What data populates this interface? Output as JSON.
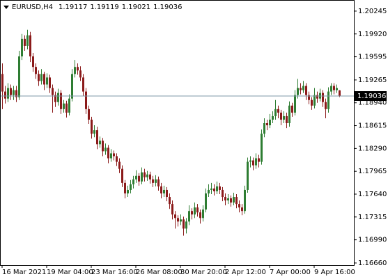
{
  "chart_data": {
    "type": "candlestick",
    "categories": [
      "16 Mar 2021",
      null,
      null,
      null,
      null,
      null,
      null,
      null,
      null,
      null,
      null,
      null,
      null,
      null,
      null,
      null,
      "19 Mar 04:00",
      null,
      null,
      null,
      null,
      null,
      null,
      null,
      null,
      null,
      null,
      null,
      null,
      null,
      null,
      null,
      "23 Mar 16:00",
      null,
      null,
      null,
      null,
      null,
      null,
      null,
      null,
      null,
      null,
      null,
      null,
      null,
      null,
      null,
      "26 Mar 08:00",
      null,
      null,
      null,
      null,
      null,
      null,
      null,
      null,
      null,
      null,
      null,
      null,
      null,
      null,
      null,
      "30 Mar 20:00",
      null,
      null,
      null,
      null,
      null,
      null,
      null,
      null,
      null,
      null,
      null,
      null,
      null,
      null,
      null,
      "2 Apr 12:00",
      null,
      null,
      null,
      null,
      null,
      null,
      null,
      null,
      null,
      null,
      null,
      null,
      null,
      null,
      null,
      "7 Apr 00:00",
      null,
      null,
      null,
      null,
      null,
      null,
      null,
      null,
      null,
      null,
      null,
      null,
      null,
      null,
      null,
      "9 Apr 16:00",
      null,
      null,
      null,
      null,
      null,
      null,
      null,
      null,
      null
    ],
    "series": [
      {
        "name": "EURUSD,H4",
        "up_color": "#2e7d32",
        "down_color": "#8b1a1a",
        "values": [
          [
            1.1935,
            1.195,
            1.1885,
            1.191
          ],
          [
            1.191,
            1.1918,
            1.1893,
            1.19
          ],
          [
            1.19,
            1.1922,
            1.1895,
            1.1915
          ],
          [
            1.1915,
            1.192,
            1.1898,
            1.1905
          ],
          [
            1.1905,
            1.1918,
            1.1898,
            1.1912
          ],
          [
            1.1912,
            1.1918,
            1.1895,
            1.1902
          ],
          [
            1.1902,
            1.1968,
            1.1898,
            1.196
          ],
          [
            1.196,
            1.1992,
            1.1955,
            1.1985
          ],
          [
            1.1985,
            1.199,
            1.1968,
            1.1975
          ],
          [
            1.1975,
            1.1998,
            1.197,
            1.199
          ],
          [
            1.199,
            1.1995,
            1.1952,
            1.196
          ],
          [
            1.196,
            1.1965,
            1.1938,
            1.1945
          ],
          [
            1.1945,
            1.195,
            1.1928,
            1.1935
          ],
          [
            1.1935,
            1.194,
            1.1918,
            1.1925
          ],
          [
            1.1925,
            1.1942,
            1.192,
            1.1935
          ],
          [
            1.1935,
            1.1938,
            1.1912,
            1.192
          ],
          [
            1.192,
            1.1936,
            1.1915,
            1.193
          ],
          [
            1.193,
            1.1934,
            1.1908,
            1.1915
          ],
          [
            1.1915,
            1.192,
            1.188,
            1.1905
          ],
          [
            1.1905,
            1.191,
            1.1888,
            1.1895
          ],
          [
            1.1895,
            1.1914,
            1.189,
            1.1908
          ],
          [
            1.1908,
            1.1912,
            1.1878,
            1.1885
          ],
          [
            1.1885,
            1.1898,
            1.188,
            1.1893
          ],
          [
            1.1893,
            1.1897,
            1.1873,
            1.188
          ],
          [
            1.188,
            1.1906,
            1.1876,
            1.19
          ],
          [
            1.19,
            1.1942,
            1.1896,
            1.1935
          ],
          [
            1.1935,
            1.1955,
            1.193,
            1.1945
          ],
          [
            1.1945,
            1.195,
            1.1934,
            1.194
          ],
          [
            1.194,
            1.1946,
            1.1925,
            1.193
          ],
          [
            1.193,
            1.1935,
            1.1904,
            1.191
          ],
          [
            1.191,
            1.1915,
            1.1878,
            1.1885
          ],
          [
            1.1885,
            1.189,
            1.1864,
            1.187
          ],
          [
            1.187,
            1.1874,
            1.1843,
            1.185
          ],
          [
            1.185,
            1.1862,
            1.1845,
            1.1855
          ],
          [
            1.1855,
            1.186,
            1.1828,
            1.1835
          ],
          [
            1.1835,
            1.1846,
            1.183,
            1.184
          ],
          [
            1.184,
            1.1844,
            1.1818,
            1.1825
          ],
          [
            1.1825,
            1.1836,
            1.182,
            1.183
          ],
          [
            1.183,
            1.1834,
            1.1808,
            1.1815
          ],
          [
            1.1815,
            1.1828,
            1.181,
            1.1822
          ],
          [
            1.1822,
            1.1826,
            1.1812,
            1.1818
          ],
          [
            1.1818,
            1.1822,
            1.1804,
            1.181
          ],
          [
            1.181,
            1.1815,
            1.1794,
            1.18
          ],
          [
            1.18,
            1.1805,
            1.1774,
            1.178
          ],
          [
            1.178,
            1.1784,
            1.1758,
            1.1765
          ],
          [
            1.1765,
            1.1776,
            1.176,
            1.177
          ],
          [
            1.177,
            1.1784,
            1.1765,
            1.1778
          ],
          [
            1.1778,
            1.179,
            1.1772,
            1.1785
          ],
          [
            1.1785,
            1.1798,
            1.178,
            1.179
          ],
          [
            1.179,
            1.1794,
            1.1776,
            1.1782
          ],
          [
            1.1782,
            1.1802,
            1.1778,
            1.1795
          ],
          [
            1.1795,
            1.18,
            1.1782,
            1.1788
          ],
          [
            1.1788,
            1.1797,
            1.1783,
            1.1792
          ],
          [
            1.1792,
            1.1796,
            1.1779,
            1.1785
          ],
          [
            1.1785,
            1.179,
            1.1774,
            1.178
          ],
          [
            1.178,
            1.1791,
            1.1775,
            1.1785
          ],
          [
            1.1785,
            1.1789,
            1.1769,
            1.1775
          ],
          [
            1.1775,
            1.178,
            1.1758,
            1.1765
          ],
          [
            1.1765,
            1.1776,
            1.176,
            1.177
          ],
          [
            1.177,
            1.1774,
            1.1754,
            1.176
          ],
          [
            1.176,
            1.1765,
            1.1743,
            1.175
          ],
          [
            1.175,
            1.1755,
            1.1728,
            1.1735
          ],
          [
            1.1735,
            1.174,
            1.1715,
            1.173
          ],
          [
            1.173,
            1.1734,
            1.1718,
            1.1725
          ],
          [
            1.1725,
            1.1735,
            1.172,
            1.1728
          ],
          [
            1.1728,
            1.1732,
            1.1705,
            1.1715
          ],
          [
            1.1715,
            1.173,
            1.1708,
            1.1725
          ],
          [
            1.1725,
            1.1748,
            1.172,
            1.174
          ],
          [
            1.174,
            1.1744,
            1.1728,
            1.1735
          ],
          [
            1.1735,
            1.1752,
            1.173,
            1.1745
          ],
          [
            1.1745,
            1.175,
            1.1732,
            1.1738
          ],
          [
            1.1738,
            1.1742,
            1.1722,
            1.173
          ],
          [
            1.173,
            1.1748,
            1.1725,
            1.1742
          ],
          [
            1.1742,
            1.1772,
            1.1738,
            1.1765
          ],
          [
            1.1765,
            1.1778,
            1.176,
            1.177
          ],
          [
            1.177,
            1.178,
            1.1764,
            1.1772
          ],
          [
            1.1772,
            1.1778,
            1.1762,
            1.1768
          ],
          [
            1.1768,
            1.1782,
            1.1764,
            1.1775
          ],
          [
            1.1775,
            1.178,
            1.1764,
            1.177
          ],
          [
            1.177,
            1.1774,
            1.1754,
            1.176
          ],
          [
            1.176,
            1.1765,
            1.1748,
            1.1755
          ],
          [
            1.1755,
            1.1764,
            1.175,
            1.1758
          ],
          [
            1.1758,
            1.1762,
            1.1746,
            1.1752
          ],
          [
            1.1752,
            1.1766,
            1.1748,
            1.176
          ],
          [
            1.176,
            1.1764,
            1.1744,
            1.175
          ],
          [
            1.175,
            1.1755,
            1.1738,
            1.1745
          ],
          [
            1.1745,
            1.175,
            1.1734,
            1.174
          ],
          [
            1.174,
            1.1776,
            1.1736,
            1.177
          ],
          [
            1.177,
            1.1816,
            1.1766,
            1.181
          ],
          [
            1.181,
            1.1818,
            1.1802,
            1.1812
          ],
          [
            1.1812,
            1.1816,
            1.1798,
            1.1805
          ],
          [
            1.1805,
            1.1822,
            1.18,
            1.1815
          ],
          [
            1.1815,
            1.182,
            1.1802,
            1.181
          ],
          [
            1.181,
            1.1856,
            1.1806,
            1.185
          ],
          [
            1.185,
            1.1872,
            1.1845,
            1.1865
          ],
          [
            1.1865,
            1.187,
            1.1855,
            1.1862
          ],
          [
            1.1862,
            1.1878,
            1.1858,
            1.187
          ],
          [
            1.187,
            1.1882,
            1.1865,
            1.1875
          ],
          [
            1.1875,
            1.1898,
            1.187,
            1.1885
          ],
          [
            1.1885,
            1.189,
            1.1872,
            1.188
          ],
          [
            1.188,
            1.1884,
            1.1862,
            1.187
          ],
          [
            1.187,
            1.1882,
            1.1865,
            1.1875
          ],
          [
            1.1875,
            1.188,
            1.1858,
            1.1865
          ],
          [
            1.1865,
            1.1896,
            1.186,
            1.189
          ],
          [
            1.189,
            1.1894,
            1.1874,
            1.188
          ],
          [
            1.188,
            1.1912,
            1.1876,
            1.1905
          ],
          [
            1.1905,
            1.1928,
            1.19,
            1.1915
          ],
          [
            1.1915,
            1.1922,
            1.1906,
            1.1912
          ],
          [
            1.1912,
            1.1925,
            1.1908,
            1.1918
          ],
          [
            1.1918,
            1.1922,
            1.1898,
            1.1905
          ],
          [
            1.1905,
            1.191,
            1.1892,
            1.1898
          ],
          [
            1.1898,
            1.1902,
            1.1884,
            1.189
          ],
          [
            1.189,
            1.1915,
            1.1886,
            1.1905
          ],
          [
            1.1905,
            1.191,
            1.1894,
            1.19
          ],
          [
            1.19,
            1.1914,
            1.1896,
            1.1908
          ],
          [
            1.1908,
            1.1912,
            1.1888,
            1.1895
          ],
          [
            1.1895,
            1.19,
            1.1872,
            1.1885
          ],
          [
            1.1885,
            1.1916,
            1.188,
            1.191
          ],
          [
            1.191,
            1.1922,
            1.1905,
            1.1918
          ],
          [
            1.1918,
            1.1922,
            1.1906,
            1.1912
          ],
          [
            1.1912,
            1.192,
            1.1908,
            1.1915
          ],
          [
            1.19117,
            1.19119,
            1.19021,
            1.19036
          ]
        ]
      }
    ],
    "ylim": [
      1.1663,
      1.20393
    ],
    "yticks": [
      1.20245,
      {
        "value": 1.1992,
        "label": "1.19920"
      },
      1.19595,
      1.19265,
      {
        "value": 1.1894,
        "label": "1.18940"
      },
      1.18615,
      {
        "value": 1.1829,
        "label": "1.18290"
      },
      1.17965,
      {
        "value": 1.1764,
        "label": "1.17640"
      },
      1.17315,
      {
        "value": 1.1699,
        "label": "1.16990"
      },
      {
        "value": 1.1666,
        "label": "1.16660"
      }
    ],
    "price_line_color": "#7f9aa8"
  }
}
